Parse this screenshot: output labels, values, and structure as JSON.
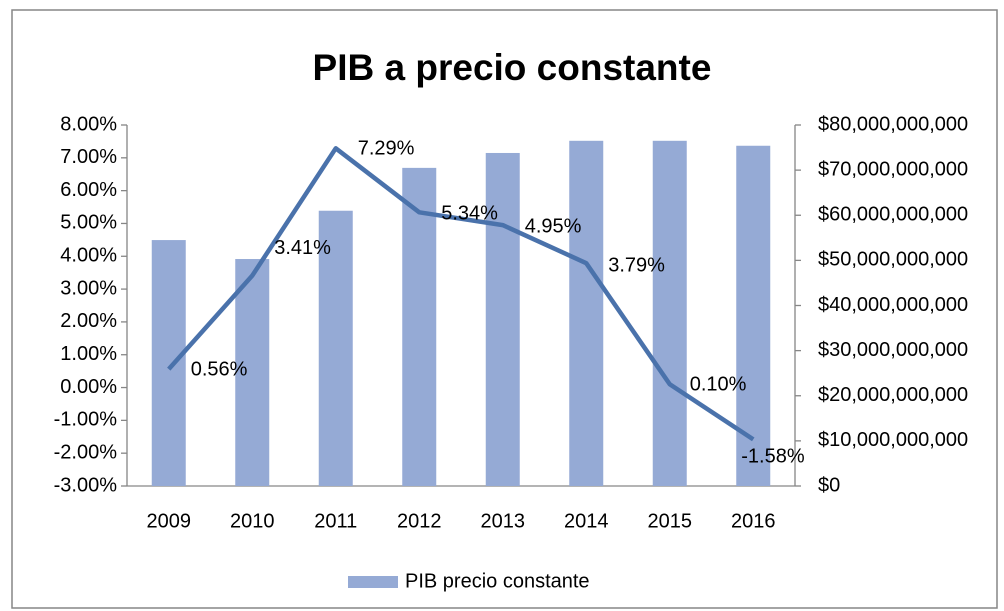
{
  "chart_data": {
    "type": "bar+line",
    "title": "PIB a precio constante",
    "categories": [
      "2009",
      "2010",
      "2011",
      "2012",
      "2013",
      "2014",
      "2015",
      "2016"
    ],
    "series": [
      {
        "name": "PIB precio constante",
        "type": "bar",
        "axis": "y2",
        "color": "#95aad5",
        "values": [
          54500000000,
          50300000000,
          61000000000,
          70500000000,
          73800000000,
          76500000000,
          76500000000,
          75400000000
        ]
      },
      {
        "type": "line",
        "axis": "y",
        "color": "#4a72ab",
        "values": [
          0.56,
          3.41,
          7.29,
          5.34,
          4.95,
          3.79,
          0.1,
          -1.58
        ],
        "value_labels": [
          "0.56%",
          "3.41%",
          "7.29%",
          "5.34%",
          "4.95%",
          "3.79%",
          "0.10%",
          "-1.58%"
        ]
      }
    ],
    "ylim": [
      -3,
      8
    ],
    "yticks": [
      {
        "value": -3,
        "label": "-3.00%"
      },
      {
        "value": -2,
        "label": "-2.00%"
      },
      {
        "value": -1,
        "label": "-1.00%"
      },
      {
        "value": 0,
        "label": "0.00%"
      },
      {
        "value": 1,
        "label": "1.00%"
      },
      {
        "value": 2,
        "label": "2.00%"
      },
      {
        "value": 3,
        "label": "3.00%"
      },
      {
        "value": 4,
        "label": "4.00%"
      },
      {
        "value": 5,
        "label": "5.00%"
      },
      {
        "value": 6,
        "label": "6.00%"
      },
      {
        "value": 7,
        "label": "7.00%"
      },
      {
        "value": 8,
        "label": "8.00%"
      }
    ],
    "y2lim": [
      0,
      80000000000
    ],
    "y2ticks": [
      {
        "value": 0,
        "label": "$0"
      },
      {
        "value": 10000000000,
        "label": "$10,000,000,000"
      },
      {
        "value": 20000000000,
        "label": "$20,000,000,000"
      },
      {
        "value": 30000000000,
        "label": "$30,000,000,000"
      },
      {
        "value": 40000000000,
        "label": "$40,000,000,000"
      },
      {
        "value": 50000000000,
        "label": "$50,000,000,000"
      },
      {
        "value": 60000000000,
        "label": "$60,000,000,000"
      },
      {
        "value": 70000000000,
        "label": "$70,000,000,000"
      },
      {
        "value": 80000000000,
        "label": "$80,000,000,000"
      }
    ],
    "grid": false,
    "legend": "bottom"
  }
}
